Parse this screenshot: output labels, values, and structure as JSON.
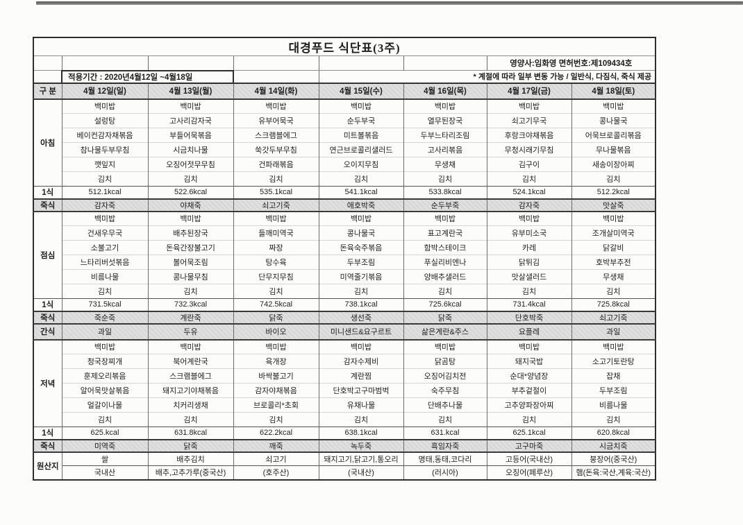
{
  "header": {
    "title": "대경푸드 식단표(3주)",
    "nutritionist": "영양사:임화영  면허번호:제109434호",
    "period": "적용기간 : 2020년4월12일 ~4월18일",
    "note": "* 계절에 따라 일부 변동 가능 / 일반식, 다짐식, 죽식 제공"
  },
  "columns": {
    "corner": "구 분",
    "days": [
      "4월 12일(일)",
      "4월 13일(월)",
      "4월 14일(화)",
      "4월 15일(수)",
      "4월 16일(목)",
      "4월 17일(금)",
      "4월 18일(토)"
    ]
  },
  "labels": {
    "per_meal": "1식",
    "porridge": "죽식",
    "snack": "간식",
    "origin": "원산지"
  },
  "sections": [
    {
      "id": "breakfast",
      "label": "아침",
      "menus": [
        [
          "백미밥",
          "설렁탕",
          "베이컨감자채볶음",
          "참나물두부무침",
          "깻잎지",
          "김치"
        ],
        [
          "백미밥",
          "고사리감자국",
          "부들어묵볶음",
          "시금치나물",
          "오징어젓무무침",
          "김치"
        ],
        [
          "백미밥",
          "유부어묵국",
          "스크램블에그",
          "쑥갓두부무침",
          "건파래볶음",
          "김치"
        ],
        [
          "백미밥",
          "순두부국",
          "미트볼볶음",
          "연근브로콜리샐러드",
          "오이지무침",
          "김치"
        ],
        [
          "백미밥",
          "열무된장국",
          "두부느타리조림",
          "고사리볶음",
          "무생채",
          "김치"
        ],
        [
          "백미밥",
          "쇠고기무국",
          "후랑크야채볶음",
          "무청시래기무침",
          "김구이",
          "김치"
        ],
        [
          "백미밥",
          "콩나물국",
          "어묵브로콜리볶음",
          "무나물볶음",
          "새송이장아찌",
          "김치"
        ]
      ],
      "kcal": [
        "512.1kcal",
        "522.6kcal",
        "535.1kcal",
        "541.1kcal",
        "533.8kcal",
        "524.1kcal",
        "512.2kcal"
      ],
      "porridge": [
        "감자죽",
        "야채죽",
        "쇠고기죽",
        "애호박죽",
        "순두부죽",
        "감자죽",
        "맛살죽"
      ]
    },
    {
      "id": "lunch",
      "label": "점심",
      "menus": [
        [
          "백미밥",
          "건새우무국",
          "소불고기",
          "느타리버섯볶음",
          "비름나물",
          "김치"
        ],
        [
          "백미밥",
          "배추된장국",
          "돈육간장불고기",
          "볼어묵조림",
          "콩나물무침",
          "김치"
        ],
        [
          "백미밥",
          "들깨미역국",
          "짜장",
          "탕수육",
          "단무지무침",
          "김치"
        ],
        [
          "백미밥",
          "콩나물국",
          "돈육숙주볶음",
          "두부조림",
          "미역줄기볶음",
          "김치"
        ],
        [
          "백미밥",
          "표고계란국",
          "함박스테이크",
          "푸실리비엔나",
          "양배추샐러드",
          "김치"
        ],
        [
          "백미밥",
          "유부미소국",
          "카레",
          "닭튀김",
          "맛살샐러드",
          "김치"
        ],
        [
          "백미밥",
          "조개살미역국",
          "닭갈비",
          "호박부추전",
          "무생채",
          "김치"
        ]
      ],
      "kcal": [
        "731.5kcal",
        "732.3kcal",
        "742.5kcal",
        "738.1kcal",
        "725.6kcal",
        "731.4kcal",
        "725.8kcal"
      ],
      "porridge": [
        "죽순죽",
        "계란죽",
        "닭죽",
        "생선죽",
        "닭죽",
        "단호박죽",
        "쇠고기죽"
      ],
      "snack": [
        "과일",
        "두유",
        "바이오",
        "미니샌드&요구르트",
        "삶은계란&주스",
        "요플레",
        "과일"
      ]
    },
    {
      "id": "dinner",
      "label": "저녁",
      "menus": [
        [
          "백미밥",
          "청국장찌개",
          "훈제오리볶음",
          "알어묵맛살볶음",
          "얼갈이나물",
          "김치"
        ],
        [
          "백미밥",
          "북어계란국",
          "스크램블에그",
          "돼지고기야채볶음",
          "치커리생채",
          "김치"
        ],
        [
          "백미밥",
          "육개장",
          "바싹불고기",
          "감자야채볶음",
          "브로콜리*초회",
          "김치"
        ],
        [
          "백미밥",
          "감자수제비",
          "계란찜",
          "단호박고구마범벅",
          "유채나물",
          "김치"
        ],
        [
          "백미밥",
          "닭곰탕",
          "오징어김치전",
          "숙주무침",
          "단배추나물",
          "김치"
        ],
        [
          "백미밥",
          "돼지국밥",
          "순대*양념장",
          "부추겉절이",
          "고추양파장아찌",
          "김치"
        ],
        [
          "백미밥",
          "소고기토란탕",
          "잡채",
          "두부조림",
          "비름나물",
          "김치"
        ]
      ],
      "kcal": [
        "625.kcal",
        "631.8kcal",
        "622.2kcal",
        "638.1kcal",
        "631.kcal",
        "625.1kcal",
        "620.8kcal"
      ],
      "porridge": [
        "미역죽",
        "닭죽",
        "깨죽",
        "녹두죽",
        "흑임자죽",
        "고구마죽",
        "시금치죽"
      ]
    }
  ],
  "origin": {
    "label": "원산지",
    "row1": [
      "쌀",
      "배추김치",
      "쇠고기",
      "돼지고기,닭고기,통오리",
      "명태,동태,코다리",
      "고등어(국내산)",
      "붕장어(중국산)"
    ],
    "row2": [
      "국내산",
      "배추,고추가루(중국산)",
      "(호주산)",
      "(국내산)",
      "(러시아)",
      "오징어(페루산)",
      "햄(돈육:국산,계육:국산)"
    ]
  },
  "colors": {
    "header_bg": "#d8d8d8",
    "gray_row_bg": "#d8d8d8",
    "border_dark": "#2d2d2d",
    "border_mid": "#6a6a6a",
    "border_light": "#d6d6d6",
    "text": "#1e1e1e",
    "page_bg": "#fcfcfa"
  }
}
